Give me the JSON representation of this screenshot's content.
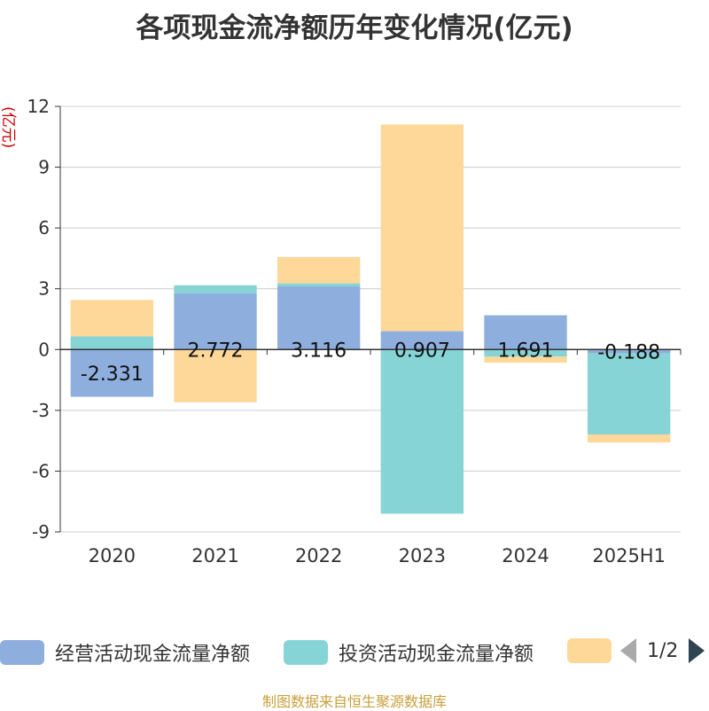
{
  "title": "各项现金流净额历年变化情况(亿元)",
  "unit_label": "(亿元)",
  "source": "制图数据来自恒生聚源数据库",
  "legend": {
    "items": [
      {
        "label": "经营活动现金流量净额",
        "color": "#8eaedd"
      },
      {
        "label": "投资活动现金流量净额",
        "color": "#87d4d6"
      },
      {
        "label": "",
        "color": "#fdd899"
      }
    ],
    "page": "1/2"
  },
  "chart_data": {
    "type": "bar",
    "stacked": true,
    "title": "各项现金流净额历年变化情况(亿元)",
    "ylabel": "(亿元)",
    "categories": [
      "2020",
      "2021",
      "2022",
      "2023",
      "2024",
      "2025H1"
    ],
    "ylim": [
      -9,
      12
    ],
    "yticks": [
      12,
      9,
      6,
      3,
      0,
      -3,
      -6,
      -9
    ],
    "grid": true,
    "legend_position": "bottom",
    "series": [
      {
        "name": "经营活动现金流量净额",
        "color": "#8eaedd",
        "values": [
          -2.331,
          2.772,
          3.116,
          0.907,
          1.691,
          -0.188
        ],
        "labels": [
          "-2.331",
          "2.772",
          "3.116",
          "0.907",
          "1.691",
          "-0.188"
        ]
      },
      {
        "name": "投资活动现金流量净额",
        "color": "#87d4d6",
        "values": [
          0.65,
          0.4,
          0.15,
          -8.1,
          -0.35,
          -4.0
        ]
      },
      {
        "name": "",
        "color": "#fdd899",
        "values": [
          1.8,
          -2.6,
          1.3,
          10.2,
          -0.3,
          -0.4
        ]
      }
    ]
  }
}
